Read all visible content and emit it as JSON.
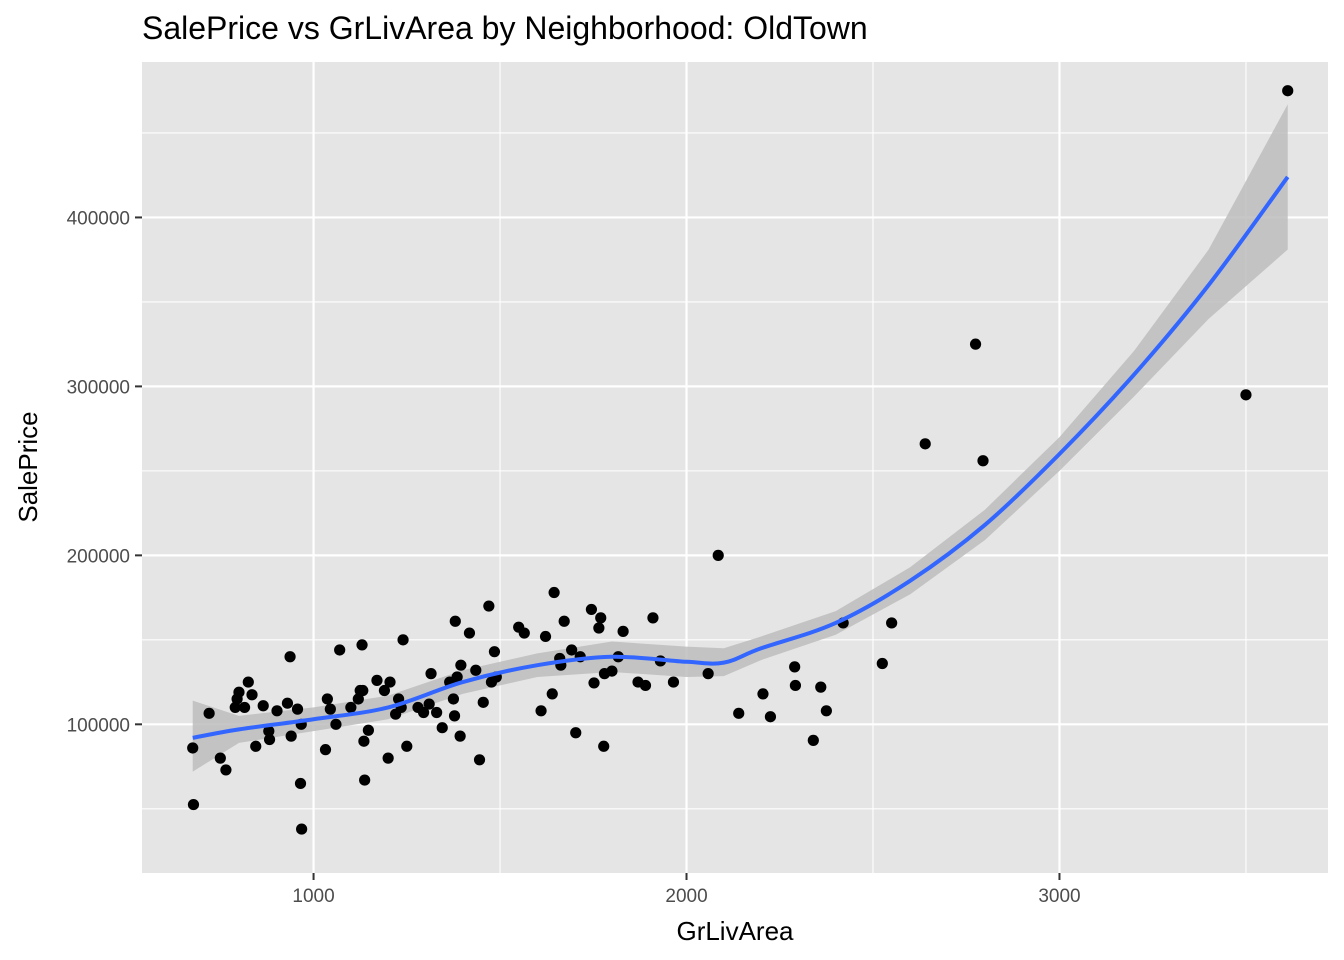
{
  "chart_data": {
    "type": "scatter",
    "title": "SalePrice vs GrLivArea by Neighborhood: OldTown",
    "xlabel": "GrLivArea",
    "ylabel": "SalePrice",
    "xlim": [
      540,
      3720
    ],
    "ylim": [
      12000,
      492000
    ],
    "x_ticks": [
      1000,
      2000,
      3000
    ],
    "x_tick_labels": [
      "1000",
      "2000",
      "3000"
    ],
    "y_ticks": [
      100000,
      200000,
      300000,
      400000
    ],
    "y_tick_labels": [
      "100000",
      "200000",
      "300000",
      "400000"
    ],
    "grid": true,
    "legend": "none",
    "colors": {
      "panel": "#e5e5e5",
      "grid": "#ffffff",
      "points": "#000000",
      "smooth_line": "#3366ff",
      "ribbon": "#bdbdbd"
    },
    "points": [
      [
        676,
        86000
      ],
      [
        678,
        52500
      ],
      [
        720,
        106500
      ],
      [
        750,
        80000
      ],
      [
        765,
        73000
      ],
      [
        790,
        110000
      ],
      [
        795,
        115000
      ],
      [
        800,
        119000
      ],
      [
        815,
        110000
      ],
      [
        825,
        125000
      ],
      [
        835,
        117500
      ],
      [
        845,
        87000
      ],
      [
        865,
        111000
      ],
      [
        880,
        96000
      ],
      [
        882,
        91000
      ],
      [
        902,
        108000
      ],
      [
        930,
        112500
      ],
      [
        937,
        140000
      ],
      [
        940,
        93000
      ],
      [
        957,
        109000
      ],
      [
        965,
        65000
      ],
      [
        967,
        100000
      ],
      [
        968,
        38000
      ],
      [
        1032,
        85000
      ],
      [
        1037,
        115000
      ],
      [
        1045,
        109000
      ],
      [
        1060,
        100000
      ],
      [
        1070,
        144000
      ],
      [
        1100,
        110000
      ],
      [
        1120,
        115000
      ],
      [
        1125,
        120000
      ],
      [
        1130,
        147000
      ],
      [
        1132,
        120000
      ],
      [
        1135,
        90000
      ],
      [
        1137,
        67000
      ],
      [
        1147,
        96500
      ],
      [
        1170,
        126000
      ],
      [
        1190,
        120000
      ],
      [
        1200,
        80000
      ],
      [
        1205,
        125000
      ],
      [
        1220,
        106000
      ],
      [
        1228,
        115000
      ],
      [
        1235,
        110000
      ],
      [
        1240,
        150000
      ],
      [
        1250,
        87000
      ],
      [
        1280,
        110000
      ],
      [
        1295,
        107000
      ],
      [
        1310,
        112000
      ],
      [
        1315,
        130000
      ],
      [
        1330,
        107000
      ],
      [
        1345,
        98000
      ],
      [
        1365,
        125000
      ],
      [
        1375,
        115000
      ],
      [
        1378,
        105000
      ],
      [
        1380,
        161000
      ],
      [
        1385,
        128000
      ],
      [
        1393,
        93000
      ],
      [
        1395,
        135000
      ],
      [
        1418,
        154000
      ],
      [
        1435,
        132000
      ],
      [
        1445,
        79000
      ],
      [
        1455,
        113000
      ],
      [
        1470,
        170000
      ],
      [
        1477,
        125000
      ],
      [
        1485,
        143000
      ],
      [
        1490,
        128000
      ],
      [
        1550,
        157500
      ],
      [
        1565,
        154000
      ],
      [
        1610,
        108000
      ],
      [
        1622,
        152000
      ],
      [
        1640,
        118000
      ],
      [
        1645,
        178000
      ],
      [
        1660,
        139000
      ],
      [
        1663,
        135000
      ],
      [
        1672,
        161000
      ],
      [
        1692,
        144000
      ],
      [
        1703,
        95000
      ],
      [
        1715,
        140000
      ],
      [
        1745,
        168000
      ],
      [
        1752,
        124500
      ],
      [
        1765,
        157000
      ],
      [
        1770,
        163000
      ],
      [
        1780,
        130000
      ],
      [
        1778,
        87000
      ],
      [
        1800,
        131500
      ],
      [
        1817,
        140000
      ],
      [
        1830,
        155000
      ],
      [
        1870,
        125000
      ],
      [
        1890,
        123000
      ],
      [
        1910,
        163000
      ],
      [
        1930,
        137500
      ],
      [
        1965,
        125000
      ],
      [
        2058,
        130000
      ],
      [
        2085,
        200000
      ],
      [
        2140,
        106500
      ],
      [
        2205,
        118000
      ],
      [
        2225,
        104500
      ],
      [
        2290,
        134000
      ],
      [
        2292,
        123000
      ],
      [
        2340,
        90500
      ],
      [
        2360,
        122000
      ],
      [
        2375,
        108000
      ],
      [
        2420,
        160000
      ],
      [
        2525,
        136000
      ],
      [
        2550,
        160000
      ],
      [
        2640,
        266000
      ],
      [
        2775,
        325000
      ],
      [
        2795,
        256000
      ],
      [
        3500,
        295000
      ],
      [
        3612,
        475000
      ]
    ],
    "smooth": {
      "method": "loess",
      "x": [
        676,
        800,
        1000,
        1200,
        1400,
        1600,
        1800,
        2000,
        2100,
        2200,
        2400,
        2600,
        2800,
        3000,
        3200,
        3400,
        3612
      ],
      "y": [
        92000,
        97000,
        103000,
        110000,
        125000,
        135000,
        140000,
        137000,
        136500,
        145000,
        160000,
        185000,
        218000,
        260000,
        307000,
        360000,
        424000
      ],
      "lower": [
        72000,
        89000,
        96000,
        103000,
        118000,
        128000,
        131000,
        128000,
        128500,
        138000,
        153000,
        177000,
        209000,
        250000,
        294000,
        340000,
        381000
      ],
      "upper": [
        114000,
        105000,
        110000,
        117000,
        132000,
        142000,
        149000,
        146000,
        145000,
        152000,
        167000,
        193000,
        227000,
        270000,
        321000,
        381000,
        467000
      ]
    }
  }
}
